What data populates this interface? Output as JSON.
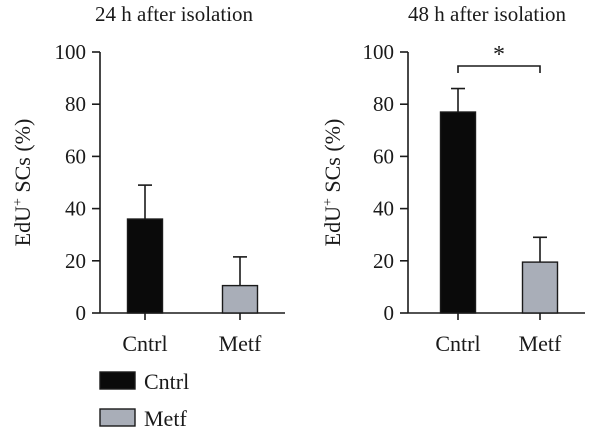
{
  "chart_data": [
    {
      "type": "bar",
      "title": "24 h after isolation",
      "ylabel": "EdU",
      "ylabel_superscript": "+",
      "ylabel_suffix": " SCs (%)",
      "ylim": [
        0,
        100
      ],
      "yticks": [
        0,
        20,
        40,
        60,
        80,
        100
      ],
      "categories": [
        "Cntrl",
        "Metf"
      ],
      "values": [
        36,
        10.5
      ],
      "errors": [
        13,
        11
      ],
      "bar_colors": [
        "#0a0a0a",
        "#a9aeb8"
      ],
      "significance": null
    },
    {
      "type": "bar",
      "title": "48 h after isolation",
      "ylabel": "EdU",
      "ylabel_superscript": "+",
      "ylabel_suffix": " SCs (%)",
      "ylim": [
        0,
        100
      ],
      "yticks": [
        0,
        20,
        40,
        60,
        80,
        100
      ],
      "categories": [
        "Cntrl",
        "Metf"
      ],
      "values": [
        77,
        19.5
      ],
      "errors": [
        9,
        9.5
      ],
      "bar_colors": [
        "#0a0a0a",
        "#a9aeb8"
      ],
      "significance": "*"
    }
  ],
  "legend": [
    {
      "label": "Cntrl",
      "color": "#0a0a0a"
    },
    {
      "label": "Metf",
      "color": "#a9aeb8"
    }
  ]
}
